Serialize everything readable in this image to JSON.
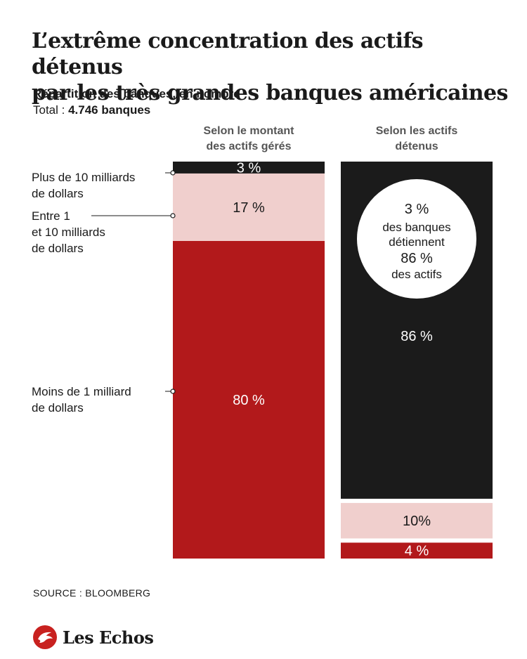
{
  "title_line1": "L’extrême concentration des actifs détenus",
  "title_line2": "par les très grandes banques américaines",
  "subtitle": "Répartition des banques, en nombre",
  "total_label": "Total : ",
  "total_value": "4.746 banques",
  "source": "SOURCE : BLOOMBERG",
  "logo_text": "Les Echos",
  "colors": {
    "large": "#1b1b1b",
    "mid": "#f0cfcd",
    "small": "#b2191b",
    "background": "#ffffff"
  },
  "callout": [
    "3 %",
    "des banques",
    "détiennent",
    "86 %",
    "des actifs"
  ],
  "chart_data": {
    "type": "bar",
    "stacked": true,
    "orientation": "vertical",
    "unit": "%",
    "title": "L’extrême concentration des actifs détenus par les très grandes banques américaines",
    "columns": [
      {
        "heading": [
          "Selon le montant",
          "des actifs gérés"
        ]
      },
      {
        "heading": [
          "Selon les actifs",
          "détenus"
        ]
      }
    ],
    "series": [
      {
        "name": "Plus de 10 milliards de dollars",
        "label_lines": [
          "Plus de 10 milliards",
          "de dollars"
        ],
        "color_key": "large",
        "values": [
          3,
          86
        ],
        "value_labels": [
          "3 %",
          "86 %"
        ]
      },
      {
        "name": "Entre 1 et 10 milliards de dollars",
        "label_lines": [
          "Entre 1",
          "et 10 milliards",
          "de dollars"
        ],
        "color_key": "mid",
        "values": [
          17,
          10
        ],
        "value_labels": [
          "17 %",
          "10%"
        ]
      },
      {
        "name": "Moins de 1 milliard de dollars",
        "label_lines": [
          "Moins de 1 milliard",
          "de dollars"
        ],
        "color_key": "small",
        "values": [
          80,
          4
        ],
        "value_labels": [
          "80 %",
          "4 %"
        ]
      }
    ]
  }
}
